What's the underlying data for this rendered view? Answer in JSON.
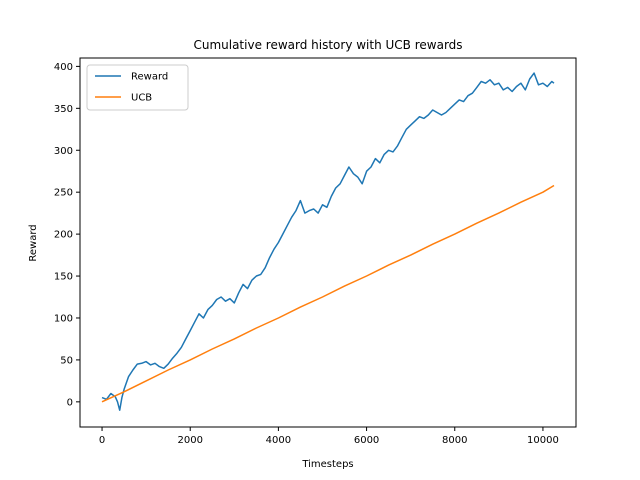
{
  "chart_data": {
    "type": "line",
    "title": "Cumulative reward history with UCB rewards",
    "xlabel": "Timesteps",
    "ylabel": "Reward",
    "xlim": [
      -500,
      10750
    ],
    "ylim": [
      -30,
      410
    ],
    "xticks": [
      0,
      2000,
      4000,
      6000,
      8000,
      10000
    ],
    "yticks": [
      0,
      50,
      100,
      150,
      200,
      250,
      300,
      350,
      400
    ],
    "grid": false,
    "legend_position": "top-left",
    "series": [
      {
        "name": "Reward",
        "color": "#1f77b4",
        "x": [
          0,
          100,
          200,
          300,
          350,
          400,
          450,
          500,
          600,
          700,
          800,
          900,
          1000,
          1100,
          1200,
          1300,
          1400,
          1500,
          1600,
          1700,
          1800,
          1900,
          2000,
          2100,
          2200,
          2300,
          2400,
          2500,
          2600,
          2700,
          2800,
          2900,
          3000,
          3100,
          3200,
          3300,
          3400,
          3500,
          3600,
          3700,
          3800,
          3900,
          4000,
          4100,
          4200,
          4300,
          4400,
          4500,
          4600,
          4700,
          4800,
          4900,
          5000,
          5100,
          5200,
          5300,
          5400,
          5500,
          5600,
          5700,
          5800,
          5900,
          6000,
          6100,
          6200,
          6300,
          6400,
          6500,
          6600,
          6700,
          6800,
          6900,
          7000,
          7100,
          7200,
          7300,
          7400,
          7500,
          7600,
          7700,
          7800,
          7900,
          8000,
          8100,
          8200,
          8300,
          8400,
          8500,
          8600,
          8700,
          8800,
          8900,
          9000,
          9100,
          9200,
          9300,
          9400,
          9500,
          9600,
          9700,
          9800,
          9900,
          10000,
          10100,
          10200,
          10250
        ],
        "y": [
          5,
          3,
          10,
          6,
          0,
          -10,
          5,
          15,
          30,
          38,
          45,
          46,
          48,
          44,
          46,
          42,
          40,
          45,
          52,
          58,
          65,
          75,
          85,
          95,
          105,
          100,
          110,
          115,
          122,
          125,
          120,
          123,
          118,
          130,
          140,
          135,
          145,
          150,
          152,
          160,
          172,
          182,
          190,
          200,
          210,
          220,
          228,
          240,
          225,
          228,
          230,
          225,
          235,
          232,
          245,
          255,
          260,
          270,
          280,
          272,
          268,
          260,
          275,
          280,
          290,
          285,
          295,
          300,
          298,
          305,
          315,
          325,
          330,
          335,
          340,
          338,
          342,
          348,
          345,
          342,
          345,
          350,
          355,
          360,
          358,
          365,
          368,
          375,
          382,
          380,
          384,
          378,
          380,
          372,
          375,
          370,
          376,
          380,
          372,
          385,
          392,
          378,
          380,
          376,
          382,
          380
        ]
      },
      {
        "name": "UCB",
        "color": "#ff7f0e",
        "x": [
          0,
          500,
          1000,
          1500,
          2000,
          2500,
          3000,
          3500,
          4000,
          4500,
          5000,
          5500,
          6000,
          6500,
          7000,
          7500,
          8000,
          8500,
          9000,
          9500,
          10000,
          10250
        ],
        "y": [
          0,
          12,
          25,
          38,
          50,
          63,
          75,
          88,
          100,
          113,
          125,
          138,
          150,
          163,
          175,
          188,
          200,
          213,
          225,
          238,
          250,
          258
        ]
      }
    ]
  }
}
